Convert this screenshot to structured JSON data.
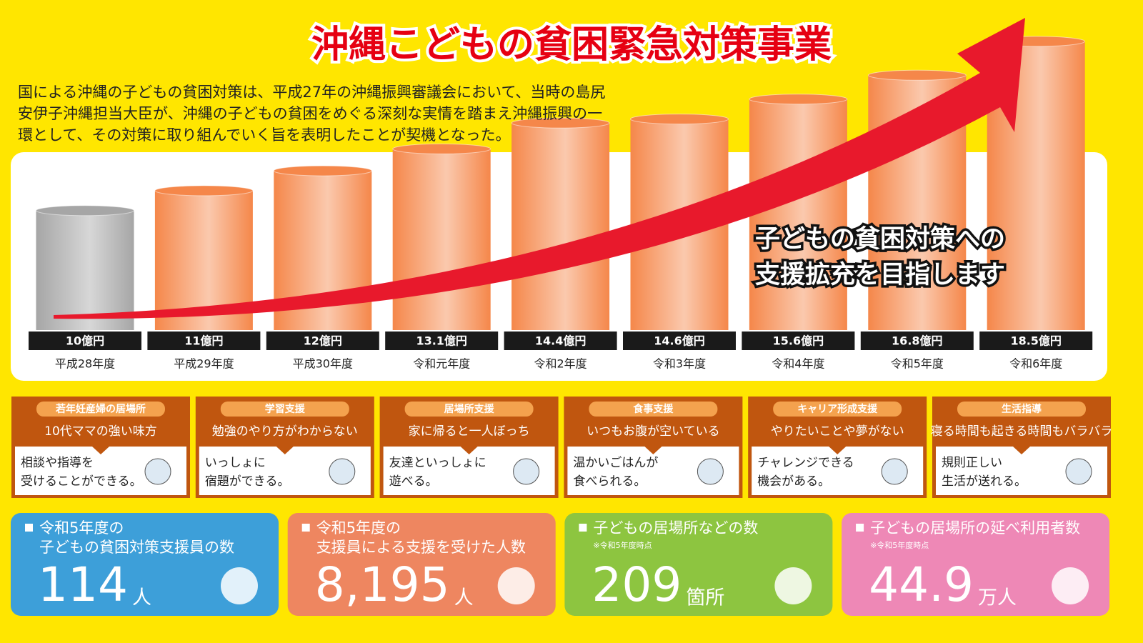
{
  "title": "沖縄こどもの貧困緊急対策事業",
  "intro": [
    "国による沖縄の子どもの貧困対策は、平成27年の沖縄振興審議会において、当時の島尻",
    "安伊子沖縄担当大臣が、沖縄の子どもの貧困をめぐる深刻な実情を踏まえ沖縄振興の一",
    "環として、その対策に取り組んでいく旨を表明したことが契機となった。"
  ],
  "chart_data": {
    "type": "bar",
    "categories": [
      "平成28年度",
      "平成29年度",
      "平成30年度",
      "令和元年度",
      "令和2年度",
      "令和3年度",
      "令和4年度",
      "令和5年度",
      "令和6年度"
    ],
    "values": [
      10,
      11,
      12,
      13.1,
      14.4,
      14.6,
      15.6,
      16.8,
      18.5
    ],
    "value_labels": [
      "10億円",
      "11億円",
      "12億円",
      "13.1億円",
      "14.4億円",
      "14.6億円",
      "15.6億円",
      "16.8億円",
      "18.5億円"
    ],
    "colors": [
      "#a6a6a6",
      "#f5874a",
      "#f5874a",
      "#f5874a",
      "#f5874a",
      "#f5874a",
      "#f5874a",
      "#f5874a",
      "#f5874a"
    ],
    "ylim": [
      4,
      19
    ]
  },
  "callout": [
    "子どもの貧困対策への",
    "支援拡充を目指します"
  ],
  "cards": [
    {
      "tag": "若年妊産婦の居場所",
      "heading": "10代ママの強い味方",
      "text": [
        "相談や指導を",
        "受けることができる。"
      ]
    },
    {
      "tag": "学習支援",
      "heading": "勉強のやり方がわからない",
      "text": [
        "いっしょに",
        "宿題ができる。"
      ]
    },
    {
      "tag": "居場所支援",
      "heading": "家に帰ると一人ぼっち",
      "text": [
        "友達といっしょに",
        "遊べる。"
      ]
    },
    {
      "tag": "食事支援",
      "heading": "いつもお腹が空いている",
      "text": [
        "温かいごはんが",
        "食べられる。"
      ]
    },
    {
      "tag": "キャリア形成支援",
      "heading": "やりたいことや夢がない",
      "text": [
        "チャレンジできる",
        "機会がある。"
      ]
    },
    {
      "tag": "生活指導",
      "heading": "寝る時間も起きる時間もバラバラ",
      "text": [
        "規則正しい",
        "生活が送れる。"
      ]
    }
  ],
  "stats": [
    {
      "label": [
        "令和5年度の",
        "子どもの貧困対策支援員の数"
      ],
      "number": "114",
      "unit": "人",
      "color": "#3d9fd9"
    },
    {
      "label": [
        "令和5年度の",
        "支援員による支援を受けた人数"
      ],
      "number": "8,195",
      "unit": "人",
      "color": "#ee8660"
    },
    {
      "label": [
        "子どもの居場所などの数"
      ],
      "note": "※令和5年度時点",
      "number": "209",
      "unit": "箇所",
      "color": "#8dc540"
    },
    {
      "label": [
        "子どもの居場所の延べ利用者数"
      ],
      "note": "※令和5年度時点",
      "number": "44.9",
      "unit": "万人",
      "color": "#ee88b6"
    }
  ]
}
